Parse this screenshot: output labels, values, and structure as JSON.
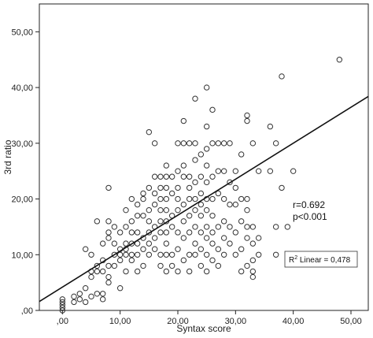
{
  "chart_data": {
    "type": "scatter",
    "title": "",
    "xlabel": "Syntax score",
    "ylabel": "3rd ratio",
    "xlim": [
      -4,
      53
    ],
    "ylim": [
      0,
      55
    ],
    "xticks": [
      0,
      10,
      20,
      30,
      40,
      50
    ],
    "xtick_labels": [
      ",00",
      "10,00",
      "20,00",
      "30,00",
      "40,00",
      "50,00"
    ],
    "yticks": [
      0,
      10,
      20,
      30,
      40,
      50
    ],
    "ytick_labels": [
      ",00",
      "10,00",
      "20,00",
      "30,00",
      "40,00",
      "50,00"
    ],
    "grid": false,
    "marker": "open-circle",
    "annotations": {
      "r": "r=0.692",
      "p": "p<0.001",
      "r2_prefix": "R",
      "r2_sup": "2",
      "r2_suffix": " Linear = 0,478"
    },
    "fit_line": {
      "x": [
        -4,
        53
      ],
      "y": [
        1.6,
        38.4
      ]
    },
    "points": [
      [
        0,
        0
      ],
      [
        0,
        0.5
      ],
      [
        0,
        1
      ],
      [
        0,
        1.5
      ],
      [
        0,
        2
      ],
      [
        2,
        1.5
      ],
      [
        2,
        2.5
      ],
      [
        3,
        2
      ],
      [
        3,
        3
      ],
      [
        4,
        1.5
      ],
      [
        4,
        4
      ],
      [
        4,
        11
      ],
      [
        5,
        2.5
      ],
      [
        5,
        6
      ],
      [
        5,
        7
      ],
      [
        5,
        10
      ],
      [
        6,
        3
      ],
      [
        6,
        7
      ],
      [
        6,
        8
      ],
      [
        6,
        16
      ],
      [
        7,
        2
      ],
      [
        7,
        3
      ],
      [
        7,
        7
      ],
      [
        7,
        9
      ],
      [
        7,
        12
      ],
      [
        8,
        5
      ],
      [
        8,
        6
      ],
      [
        8,
        8
      ],
      [
        8,
        13
      ],
      [
        8,
        14
      ],
      [
        8,
        16
      ],
      [
        8,
        22
      ],
      [
        9,
        8
      ],
      [
        9,
        10
      ],
      [
        9,
        12
      ],
      [
        9,
        15
      ],
      [
        10,
        4
      ],
      [
        10,
        9
      ],
      [
        10,
        10
      ],
      [
        10,
        11
      ],
      [
        10,
        14
      ],
      [
        11,
        7
      ],
      [
        11,
        10
      ],
      [
        11,
        11
      ],
      [
        11,
        12
      ],
      [
        11,
        15
      ],
      [
        11,
        18
      ],
      [
        12,
        9
      ],
      [
        12,
        10
      ],
      [
        12,
        12
      ],
      [
        12,
        14
      ],
      [
        12,
        16
      ],
      [
        12,
        20
      ],
      [
        13,
        7
      ],
      [
        13,
        10
      ],
      [
        13,
        12
      ],
      [
        13,
        14
      ],
      [
        13,
        17
      ],
      [
        13,
        19
      ],
      [
        14,
        8
      ],
      [
        14,
        11
      ],
      [
        14,
        13
      ],
      [
        14,
        17
      ],
      [
        14,
        20
      ],
      [
        14,
        21
      ],
      [
        15,
        10
      ],
      [
        15,
        12
      ],
      [
        15,
        14
      ],
      [
        15,
        16
      ],
      [
        15,
        18
      ],
      [
        15,
        22
      ],
      [
        15,
        32
      ],
      [
        16,
        11
      ],
      [
        16,
        13
      ],
      [
        16,
        15
      ],
      [
        16,
        19
      ],
      [
        16,
        21
      ],
      [
        16,
        24
      ],
      [
        16,
        30
      ],
      [
        17,
        8
      ],
      [
        17,
        10
      ],
      [
        17,
        14
      ],
      [
        17,
        16
      ],
      [
        17,
        18
      ],
      [
        17,
        20
      ],
      [
        17,
        22
      ],
      [
        17,
        24
      ],
      [
        18,
        7
      ],
      [
        18,
        10
      ],
      [
        18,
        12
      ],
      [
        18,
        14
      ],
      [
        18,
        16
      ],
      [
        18,
        18
      ],
      [
        18,
        20
      ],
      [
        18,
        22
      ],
      [
        18,
        24
      ],
      [
        18,
        26
      ],
      [
        19,
        8
      ],
      [
        19,
        10
      ],
      [
        19,
        15
      ],
      [
        19,
        17
      ],
      [
        19,
        21
      ],
      [
        19,
        24
      ],
      [
        20,
        7
      ],
      [
        20,
        11
      ],
      [
        20,
        14
      ],
      [
        20,
        18
      ],
      [
        20,
        20
      ],
      [
        20,
        22
      ],
      [
        20,
        25
      ],
      [
        20,
        30
      ],
      [
        21,
        9
      ],
      [
        21,
        13
      ],
      [
        21,
        16
      ],
      [
        21,
        19
      ],
      [
        21,
        24
      ],
      [
        21,
        26
      ],
      [
        21,
        30
      ],
      [
        21,
        34
      ],
      [
        22,
        7
      ],
      [
        22,
        10
      ],
      [
        22,
        14
      ],
      [
        22,
        17
      ],
      [
        22,
        20
      ],
      [
        22,
        22
      ],
      [
        22,
        24
      ],
      [
        22,
        30
      ],
      [
        23,
        10
      ],
      [
        23,
        12
      ],
      [
        23,
        15
      ],
      [
        23,
        18
      ],
      [
        23,
        20
      ],
      [
        23,
        23
      ],
      [
        23,
        27
      ],
      [
        23,
        30
      ],
      [
        23,
        38
      ],
      [
        24,
        8
      ],
      [
        24,
        11
      ],
      [
        24,
        14
      ],
      [
        24,
        17
      ],
      [
        24,
        19
      ],
      [
        24,
        21
      ],
      [
        24,
        24
      ],
      [
        24,
        28
      ],
      [
        25,
        7
      ],
      [
        25,
        10
      ],
      [
        25,
        13
      ],
      [
        25,
        15
      ],
      [
        25,
        18
      ],
      [
        25,
        20
      ],
      [
        25,
        23
      ],
      [
        25,
        26
      ],
      [
        25,
        29
      ],
      [
        25,
        33
      ],
      [
        25,
        40
      ],
      [
        26,
        9
      ],
      [
        26,
        12
      ],
      [
        26,
        14
      ],
      [
        26,
        17
      ],
      [
        26,
        20
      ],
      [
        26,
        24
      ],
      [
        26,
        30
      ],
      [
        26,
        36
      ],
      [
        27,
        8
      ],
      [
        27,
        11
      ],
      [
        27,
        15
      ],
      [
        27,
        21
      ],
      [
        27,
        25
      ],
      [
        27,
        30
      ],
      [
        28,
        10
      ],
      [
        28,
        13
      ],
      [
        28,
        16
      ],
      [
        28,
        20
      ],
      [
        28,
        25
      ],
      [
        28,
        30
      ],
      [
        29,
        12
      ],
      [
        29,
        15
      ],
      [
        29,
        19
      ],
      [
        29,
        23
      ],
      [
        29,
        30
      ],
      [
        30,
        10
      ],
      [
        30,
        14
      ],
      [
        30,
        19
      ],
      [
        30,
        22
      ],
      [
        30,
        25
      ],
      [
        31,
        7
      ],
      [
        31,
        11
      ],
      [
        31,
        16
      ],
      [
        31,
        20
      ],
      [
        31,
        28
      ],
      [
        32,
        8
      ],
      [
        32,
        13
      ],
      [
        32,
        15
      ],
      [
        32,
        18
      ],
      [
        32,
        20
      ],
      [
        32,
        34
      ],
      [
        32,
        35
      ],
      [
        33,
        6
      ],
      [
        33,
        7
      ],
      [
        33,
        9
      ],
      [
        33,
        12
      ],
      [
        33,
        15
      ],
      [
        33,
        30
      ],
      [
        34,
        10
      ],
      [
        34,
        13
      ],
      [
        34,
        25
      ],
      [
        36,
        33
      ],
      [
        36,
        25
      ],
      [
        37,
        30
      ],
      [
        37,
        10
      ],
      [
        37,
        15
      ],
      [
        38,
        42
      ],
      [
        38,
        22
      ],
      [
        39,
        15
      ],
      [
        40,
        25
      ],
      [
        48,
        45
      ]
    ]
  }
}
